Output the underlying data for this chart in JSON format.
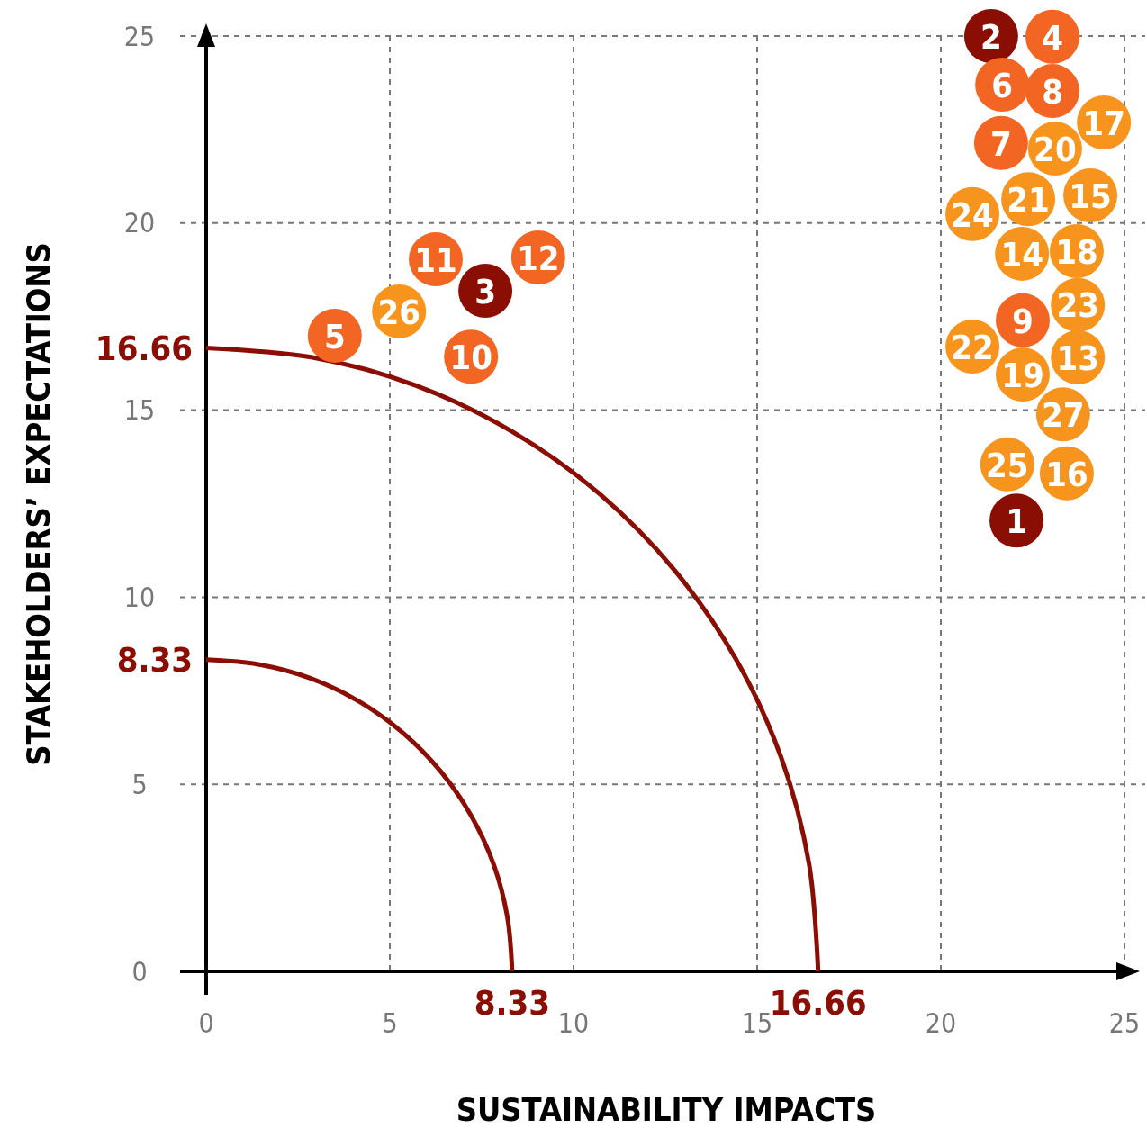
{
  "chart_data": {
    "type": "scatter",
    "xlabel": "SUSTAINABILITY IMPACTS",
    "ylabel": "STAKEHOLDERS’ EXPECTATIONS",
    "xlim": [
      0,
      25
    ],
    "ylim": [
      0,
      25
    ],
    "xticks": [
      0,
      5,
      10,
      15,
      20,
      25
    ],
    "yticks": [
      0,
      5,
      10,
      15,
      20,
      25
    ],
    "grid": true,
    "series": [
      {
        "marker": "circle",
        "x": [
          22.06,
          21.37,
          7.6,
          23.04,
          3.5,
          21.67,
          21.64,
          23.04,
          22.23,
          7.21,
          6.25,
          9.04,
          23.73,
          22.21,
          24.07,
          23.43,
          24.44,
          23.7,
          22.23,
          23.11,
          22.38,
          20.86,
          23.73,
          20.86,
          21.81,
          5.25,
          23.33
        ],
        "values": [
          12.05,
          25,
          18.19,
          24.98,
          16.99,
          23.7,
          22.14,
          23.53,
          17.4,
          16.43,
          19.03,
          19.08,
          16.41,
          19.18,
          20.74,
          13.31,
          22.69,
          19.25,
          15.95,
          21.99,
          20.64,
          16.7,
          17.81,
          20.24,
          13.55,
          17.64,
          14.89
        ],
        "colors": [
          "#8b0e04",
          "#8b0e04",
          "#8b0e04",
          "#f26522",
          "#f26522",
          "#f26522",
          "#f26522",
          "#f26522",
          "#f26522",
          "#f26522",
          "#f26522",
          "#f26522",
          "#f7941d",
          "#f7941d",
          "#f7941d",
          "#f7941d",
          "#f7941d",
          "#f7941d",
          "#f7941d",
          "#f7941d",
          "#f7941d",
          "#f7941d",
          "#f7941d",
          "#f7941d",
          "#f7941d",
          "#f7941d",
          "#f7941d"
        ]
      },
      {
        "type": "line",
        "marker": "none",
        "color": "#8b0e04",
        "x": [
          8.33,
          8.2,
          7.83,
          7.21,
          6.38,
          5.35,
          4.17,
          2.85,
          1.45,
          0
        ],
        "values": [
          0,
          1.45,
          2.85,
          4.17,
          5.35,
          6.38,
          7.21,
          7.83,
          8.2,
          8.33
        ]
      },
      {
        "type": "line",
        "marker": "none",
        "color": "#8b0e04",
        "x": [
          16.66,
          16.41,
          15.66,
          14.43,
          12.76,
          10.71,
          8.33,
          5.7,
          2.89,
          0
        ],
        "values": [
          0,
          2.89,
          5.7,
          8.33,
          10.71,
          12.76,
          14.43,
          15.66,
          16.41,
          16.66
        ]
      }
    ],
    "annotations": [
      {
        "text": "1",
        "x": 22.06,
        "y": 12.05
      },
      {
        "text": "2",
        "x": 21.37,
        "y": 25
      },
      {
        "text": "3",
        "x": 7.6,
        "y": 18.19
      },
      {
        "text": "4",
        "x": 23.04,
        "y": 24.98
      },
      {
        "text": "5",
        "x": 3.5,
        "y": 16.99
      },
      {
        "text": "6",
        "x": 21.67,
        "y": 23.7
      },
      {
        "text": "7",
        "x": 21.64,
        "y": 22.14
      },
      {
        "text": "8",
        "x": 23.04,
        "y": 23.53
      },
      {
        "text": "9",
        "x": 22.23,
        "y": 17.4
      },
      {
        "text": "10",
        "x": 7.21,
        "y": 16.43
      },
      {
        "text": "11",
        "x": 6.25,
        "y": 19.03
      },
      {
        "text": "12",
        "x": 9.04,
        "y": 19.08
      },
      {
        "text": "13",
        "x": 23.73,
        "y": 16.41
      },
      {
        "text": "14",
        "x": 22.21,
        "y": 19.18
      },
      {
        "text": "15",
        "x": 24.07,
        "y": 20.74
      },
      {
        "text": "16",
        "x": 23.43,
        "y": 13.31
      },
      {
        "text": "17",
        "x": 24.44,
        "y": 22.69
      },
      {
        "text": "18",
        "x": 23.7,
        "y": 19.25
      },
      {
        "text": "19",
        "x": 22.23,
        "y": 15.95
      },
      {
        "text": "20",
        "x": 23.11,
        "y": 21.99
      },
      {
        "text": "21",
        "x": 22.38,
        "y": 20.64
      },
      {
        "text": "22",
        "x": 20.86,
        "y": 16.7
      },
      {
        "text": "23",
        "x": 23.73,
        "y": 17.81
      },
      {
        "text": "24",
        "x": 20.86,
        "y": 20.24
      },
      {
        "text": "25",
        "x": 21.81,
        "y": 13.55
      },
      {
        "text": "26",
        "x": 5.25,
        "y": 17.64
      },
      {
        "text": "27",
        "x": 23.33,
        "y": 14.89
      },
      {
        "text": "8.33",
        "x": 8.33,
        "y": 0
      },
      {
        "text": "16.66",
        "x": 16.66,
        "y": 0
      },
      {
        "text": "8.33",
        "x": 0,
        "y": 8.33
      },
      {
        "text": "16.66",
        "x": 0,
        "y": 16.66
      }
    ]
  }
}
